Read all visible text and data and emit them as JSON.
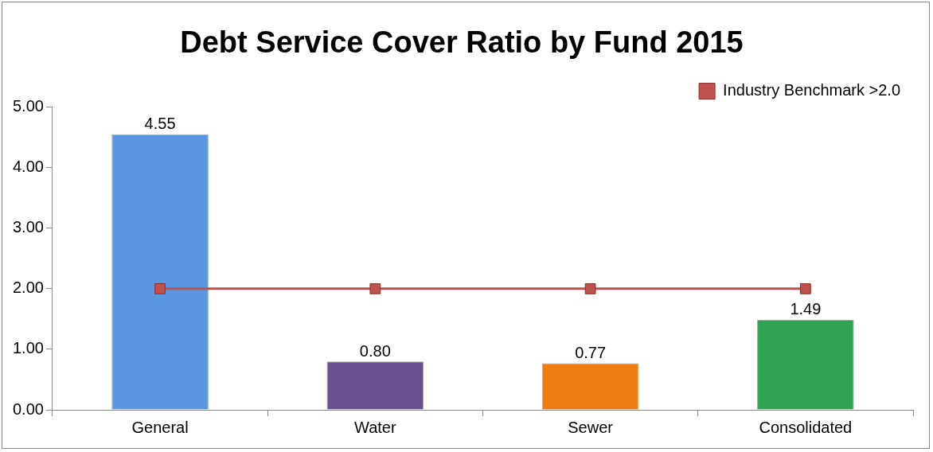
{
  "chart_data": {
    "type": "bar",
    "title": "Debt Service Cover Ratio by Fund 2015",
    "categories": [
      "General",
      "Water",
      "Sewer",
      "Consolidated"
    ],
    "series": [
      {
        "colors": [
          "#5b97e0",
          "#6a4f8f",
          "#f07d12",
          "#2fa352"
        ],
        "values": [
          4.55,
          0.8,
          0.77,
          1.49
        ],
        "value_labels": [
          "4.55",
          "0.80",
          "0.77",
          "1.49"
        ]
      },
      {
        "type": "line",
        "name": "Industry Benchmark >2.0",
        "color": "#c0504d",
        "values": [
          2,
          2,
          2,
          2
        ],
        "marker": "square"
      }
    ],
    "ylim": [
      0,
      5
    ],
    "yticks": [
      {
        "value": 0,
        "label": "0.00"
      },
      {
        "value": 1,
        "label": "1.00"
      },
      {
        "value": 2,
        "label": "2.00"
      },
      {
        "value": 3,
        "label": "3.00"
      },
      {
        "value": 4,
        "label": "4.00"
      },
      {
        "value": 5,
        "label": "5.00"
      }
    ],
    "grid": false,
    "legend": "top right"
  }
}
